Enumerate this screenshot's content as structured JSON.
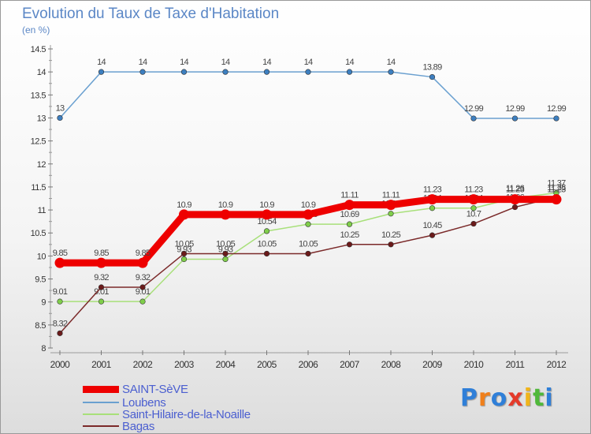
{
  "chart_data": {
    "type": "line",
    "title": "Evolution du Taux de Taxe d'Habitation",
    "unit_label": "(en %)",
    "categories": [
      "2000",
      "2001",
      "2002",
      "2003",
      "2004",
      "2005",
      "2006",
      "2007",
      "2008",
      "2009",
      "2010",
      "2011",
      "2012"
    ],
    "ylim": [
      8,
      14.5
    ],
    "yticks": [
      "8",
      "8.5",
      "9",
      "9.5",
      "10",
      "10.5",
      "11",
      "11.5",
      "12",
      "12.5",
      "13",
      "13.5",
      "14",
      "14.5"
    ],
    "grid": false,
    "legend_position": "bottom-left",
    "series": [
      {
        "name": "SAINT-SèVE",
        "color": "#ee0000",
        "marker": "#ee0000",
        "highlight": true,
        "values": [
          9.85,
          9.85,
          9.85,
          10.9,
          10.9,
          10.9,
          10.9,
          11.11,
          11.11,
          11.23,
          11.23,
          11.23,
          11.23
        ],
        "labels": [
          "9.85",
          "9.85",
          "9.85",
          "10.9",
          "10.9",
          "10.9",
          "10.9",
          "11.11",
          "11.11",
          "11.23",
          "11.23",
          "11.23",
          "11.23"
        ]
      },
      {
        "name": "Loubens",
        "color": "#6aa0d0",
        "marker": "#3d7fc0",
        "highlight": false,
        "values": [
          13,
          14,
          14,
          14,
          14,
          14,
          14,
          14,
          14,
          13.89,
          12.99,
          12.99,
          12.99
        ],
        "labels": [
          "13",
          "14",
          "14",
          "14",
          "14",
          "14",
          "14",
          "14",
          "14",
          "13.89",
          "12.99",
          "12.99",
          "12.99"
        ]
      },
      {
        "name": "Saint-Hilaire-de-la-Noaille",
        "color": "#a8e07a",
        "marker": "#7fce4a",
        "highlight": false,
        "values": [
          9.01,
          9.01,
          9.01,
          9.93,
          9.93,
          10.54,
          10.69,
          10.69,
          10.92,
          11.04,
          11.04,
          11.26,
          11.37
        ],
        "labels": [
          "9.01",
          "9.01",
          "9.01",
          "9.93",
          "9.93",
          "10.54",
          "10.69",
          "10.69",
          "10.92",
          "11.04",
          "11.04",
          "11.26",
          "11.37"
        ]
      },
      {
        "name": "Bagas",
        "color": "#7b2a2a",
        "marker": "#6b1a1a",
        "highlight": false,
        "values": [
          8.32,
          9.32,
          9.32,
          10.05,
          10.05,
          10.05,
          10.05,
          10.25,
          10.25,
          10.45,
          10.7,
          11.06,
          11.28
        ],
        "labels": [
          "8.32",
          "9.32",
          "9.32",
          "10.05",
          "10.05",
          "10.05",
          "10.05",
          "10.25",
          "10.25",
          "10.45",
          "10.7",
          "11.06",
          "11.28"
        ]
      }
    ]
  },
  "logo": {
    "text": "Proxiti",
    "letters": [
      "P",
      "r",
      "o",
      "x",
      "i",
      "t",
      "i"
    ],
    "colors": [
      "#2f7fd8",
      "#f07f1a",
      "#2f7fd8",
      "#e43a2a",
      "#f0b41a",
      "#4fb83a",
      "#2f7fd8"
    ]
  }
}
